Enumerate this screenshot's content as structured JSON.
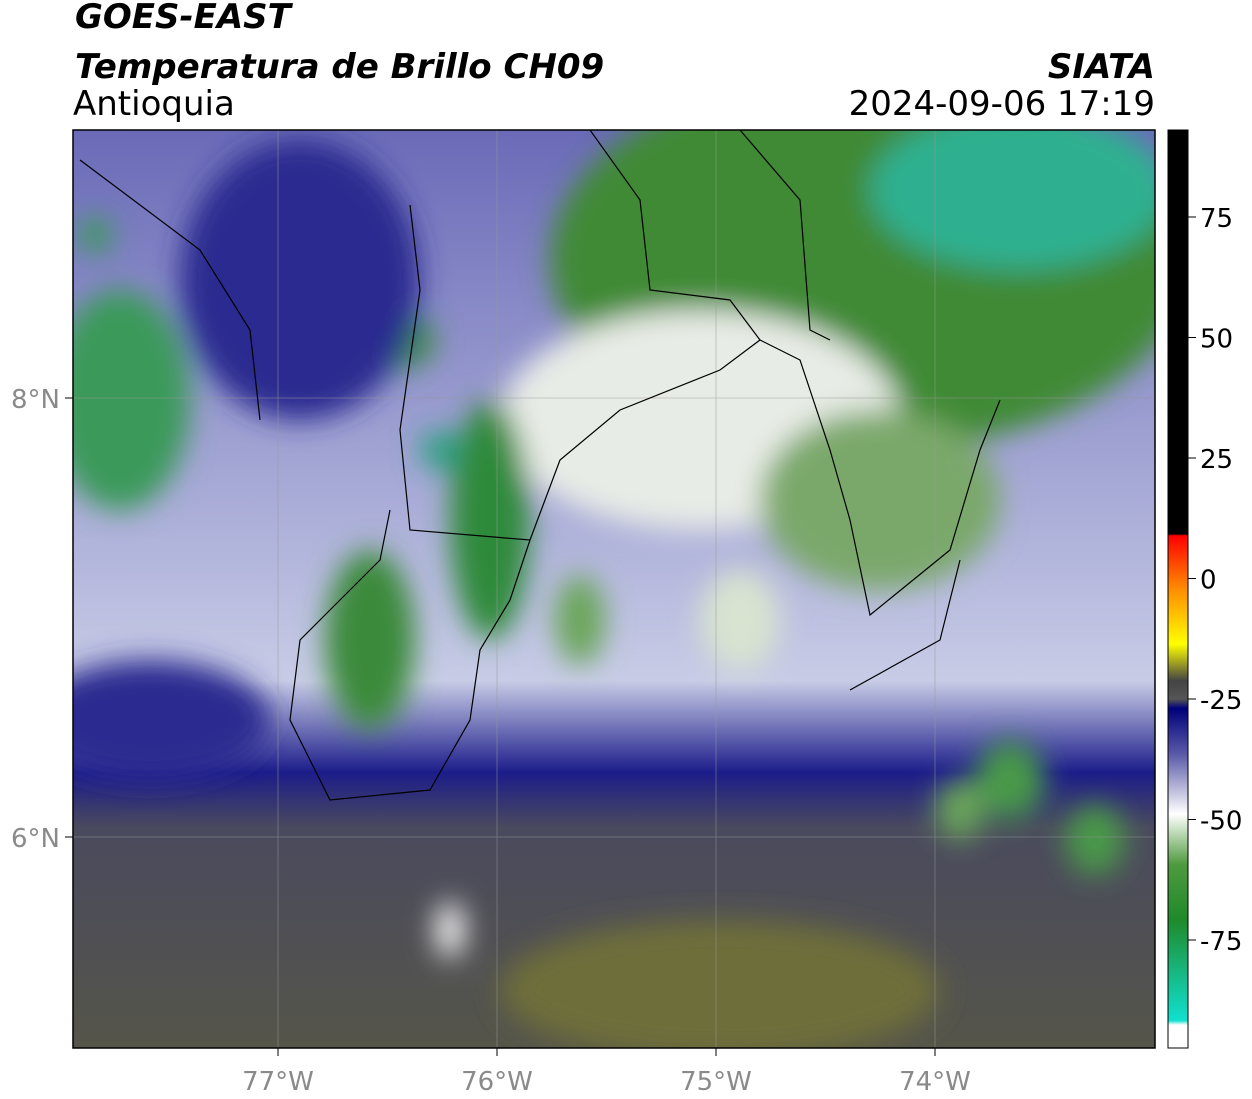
{
  "header": {
    "title": "GOES-EAST",
    "subtitle": "Temperatura de Brillo CH09",
    "region": "Antioquia",
    "source": "SIATA",
    "datetime": "2024-09-06 17:19"
  },
  "map": {
    "lon_ticks": [
      "77°W",
      "76°W",
      "75°W",
      "74°W"
    ],
    "lat_ticks": [
      "8°N",
      "6°N"
    ]
  },
  "colorbar": {
    "ticks": [
      75,
      50,
      25,
      0,
      -25,
      -50,
      -75
    ]
  }
}
